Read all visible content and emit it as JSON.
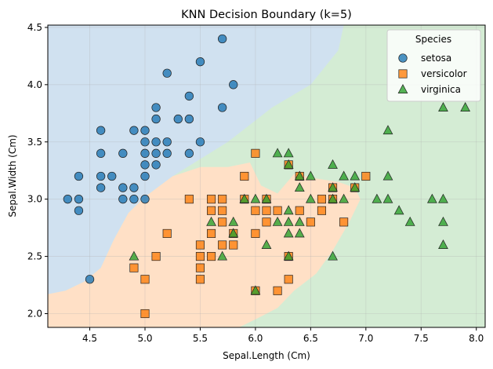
{
  "chart_data": {
    "type": "scatter",
    "title": "KNN Decision Boundary (k=5)",
    "xlabel": "Sepal.Length (Cm)",
    "ylabel": "Sepal.Width (Cm)",
    "xlim": [
      4.12,
      8.08
    ],
    "ylim": [
      1.88,
      4.52
    ],
    "xticks": [
      4.5,
      5.0,
      5.5,
      6.0,
      6.5,
      7.0,
      7.5,
      8.0
    ],
    "yticks": [
      2.0,
      2.5,
      3.0,
      3.5,
      4.0,
      4.5
    ],
    "xtick_labels": [
      "4.5",
      "5.0",
      "5.5",
      "6.0",
      "6.5",
      "7.0",
      "7.5",
      "8.0"
    ],
    "ytick_labels": [
      "2.0",
      "2.5",
      "3.0",
      "3.5",
      "4.0",
      "4.5"
    ],
    "grid": true,
    "legend": {
      "title": "Species",
      "placement": "top-right"
    },
    "colors": {
      "setosa": "#1f77b4",
      "versicolor": "#ff7f0e",
      "virginica": "#2ca02c"
    },
    "region_colors": {
      "setosa": "#d0e1f0",
      "versicolor": "#ffe0c6",
      "virginica": "#d4ecd4"
    },
    "series": [
      {
        "name": "setosa",
        "marker": "circle",
        "points": [
          [
            4.3,
            3.0
          ],
          [
            4.4,
            2.9
          ],
          [
            4.4,
            3.0
          ],
          [
            4.4,
            3.2
          ],
          [
            4.5,
            2.3
          ],
          [
            4.6,
            3.1
          ],
          [
            4.6,
            3.2
          ],
          [
            4.6,
            3.4
          ],
          [
            4.6,
            3.6
          ],
          [
            4.7,
            3.2
          ],
          [
            4.8,
            3.0
          ],
          [
            4.8,
            3.1
          ],
          [
            4.8,
            3.4
          ],
          [
            4.9,
            3.0
          ],
          [
            4.9,
            3.1
          ],
          [
            4.9,
            3.6
          ],
          [
            5.0,
            3.0
          ],
          [
            5.0,
            3.2
          ],
          [
            5.0,
            3.3
          ],
          [
            5.0,
            3.4
          ],
          [
            5.0,
            3.5
          ],
          [
            5.0,
            3.6
          ],
          [
            5.1,
            3.3
          ],
          [
            5.1,
            3.4
          ],
          [
            5.1,
            3.5
          ],
          [
            5.1,
            3.7
          ],
          [
            5.1,
            3.8
          ],
          [
            5.2,
            3.4
          ],
          [
            5.2,
            3.5
          ],
          [
            5.2,
            4.1
          ],
          [
            5.3,
            3.7
          ],
          [
            5.4,
            3.4
          ],
          [
            5.4,
            3.7
          ],
          [
            5.4,
            3.9
          ],
          [
            5.5,
            3.5
          ],
          [
            5.5,
            4.2
          ],
          [
            5.7,
            3.8
          ],
          [
            5.7,
            4.4
          ],
          [
            5.8,
            4.0
          ]
        ]
      },
      {
        "name": "versicolor",
        "marker": "square",
        "points": [
          [
            4.9,
            2.4
          ],
          [
            5.0,
            2.0
          ],
          [
            5.0,
            2.3
          ],
          [
            5.1,
            2.5
          ],
          [
            5.2,
            2.7
          ],
          [
            5.4,
            3.0
          ],
          [
            5.5,
            2.3
          ],
          [
            5.5,
            2.4
          ],
          [
            5.5,
            2.5
          ],
          [
            5.5,
            2.6
          ],
          [
            5.6,
            2.5
          ],
          [
            5.6,
            2.7
          ],
          [
            5.6,
            2.9
          ],
          [
            5.6,
            3.0
          ],
          [
            5.7,
            2.6
          ],
          [
            5.7,
            2.8
          ],
          [
            5.7,
            2.9
          ],
          [
            5.7,
            3.0
          ],
          [
            5.8,
            2.6
          ],
          [
            5.8,
            2.7
          ],
          [
            5.9,
            3.0
          ],
          [
            5.9,
            3.2
          ],
          [
            6.0,
            2.2
          ],
          [
            6.0,
            2.7
          ],
          [
            6.0,
            2.9
          ],
          [
            6.0,
            3.4
          ],
          [
            6.1,
            2.8
          ],
          [
            6.1,
            2.9
          ],
          [
            6.1,
            3.0
          ],
          [
            6.2,
            2.2
          ],
          [
            6.2,
            2.9
          ],
          [
            6.3,
            2.3
          ],
          [
            6.3,
            2.5
          ],
          [
            6.3,
            3.3
          ],
          [
            6.4,
            2.9
          ],
          [
            6.4,
            3.2
          ],
          [
            6.5,
            2.8
          ],
          [
            6.6,
            2.9
          ],
          [
            6.6,
            3.0
          ],
          [
            6.7,
            3.0
          ],
          [
            6.7,
            3.1
          ],
          [
            6.8,
            2.8
          ],
          [
            6.9,
            3.1
          ],
          [
            7.0,
            3.2
          ]
        ]
      },
      {
        "name": "virginica",
        "marker": "triangle",
        "points": [
          [
            4.9,
            2.5
          ],
          [
            5.6,
            2.8
          ],
          [
            5.7,
            2.5
          ],
          [
            5.8,
            2.7
          ],
          [
            5.8,
            2.8
          ],
          [
            5.9,
            3.0
          ],
          [
            6.0,
            2.2
          ],
          [
            6.0,
            3.0
          ],
          [
            6.1,
            2.6
          ],
          [
            6.1,
            3.0
          ],
          [
            6.2,
            2.8
          ],
          [
            6.2,
            3.4
          ],
          [
            6.3,
            2.5
          ],
          [
            6.3,
            2.7
          ],
          [
            6.3,
            2.8
          ],
          [
            6.3,
            2.9
          ],
          [
            6.3,
            3.3
          ],
          [
            6.3,
            3.4
          ],
          [
            6.4,
            2.7
          ],
          [
            6.4,
            2.8
          ],
          [
            6.4,
            3.1
          ],
          [
            6.4,
            3.2
          ],
          [
            6.5,
            3.0
          ],
          [
            6.5,
            3.2
          ],
          [
            6.7,
            2.5
          ],
          [
            6.7,
            3.0
          ],
          [
            6.7,
            3.1
          ],
          [
            6.7,
            3.3
          ],
          [
            6.8,
            3.0
          ],
          [
            6.8,
            3.2
          ],
          [
            6.9,
            3.1
          ],
          [
            6.9,
            3.2
          ],
          [
            7.1,
            3.0
          ],
          [
            7.2,
            3.0
          ],
          [
            7.2,
            3.2
          ],
          [
            7.2,
            3.6
          ],
          [
            7.3,
            2.9
          ],
          [
            7.4,
            2.8
          ],
          [
            7.6,
            3.0
          ],
          [
            7.7,
            2.6
          ],
          [
            7.7,
            2.8
          ],
          [
            7.7,
            3.0
          ],
          [
            7.7,
            3.8
          ],
          [
            7.9,
            3.8
          ]
        ]
      }
    ]
  }
}
